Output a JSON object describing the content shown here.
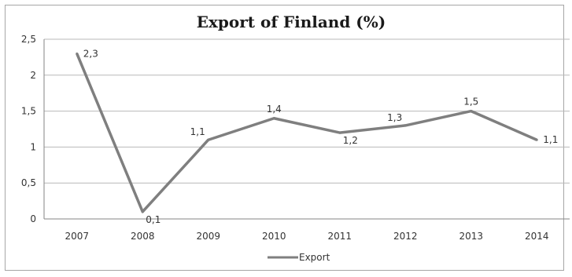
{
  "chart_data": {
    "type": "line",
    "title": "Export of Finland (%)",
    "categories": [
      "2007",
      "2008",
      "2009",
      "2010",
      "2011",
      "2012",
      "2013",
      "2014"
    ],
    "series": [
      {
        "name": "Export",
        "values": [
          2.3,
          0.1,
          1.1,
          1.4,
          1.2,
          1.3,
          1.5,
          1.1
        ],
        "labels": [
          "2,3",
          "0,1",
          "1,1",
          "1,4",
          "1,2",
          "1,3",
          "1,5",
          "1,1"
        ],
        "color": "#7f7f7f"
      }
    ],
    "yticks": [
      "0",
      "0,5",
      "1",
      "1,5",
      "2",
      "2,5"
    ],
    "ylim": [
      0,
      2.5
    ],
    "grid": true,
    "legend_position": "bottom"
  }
}
